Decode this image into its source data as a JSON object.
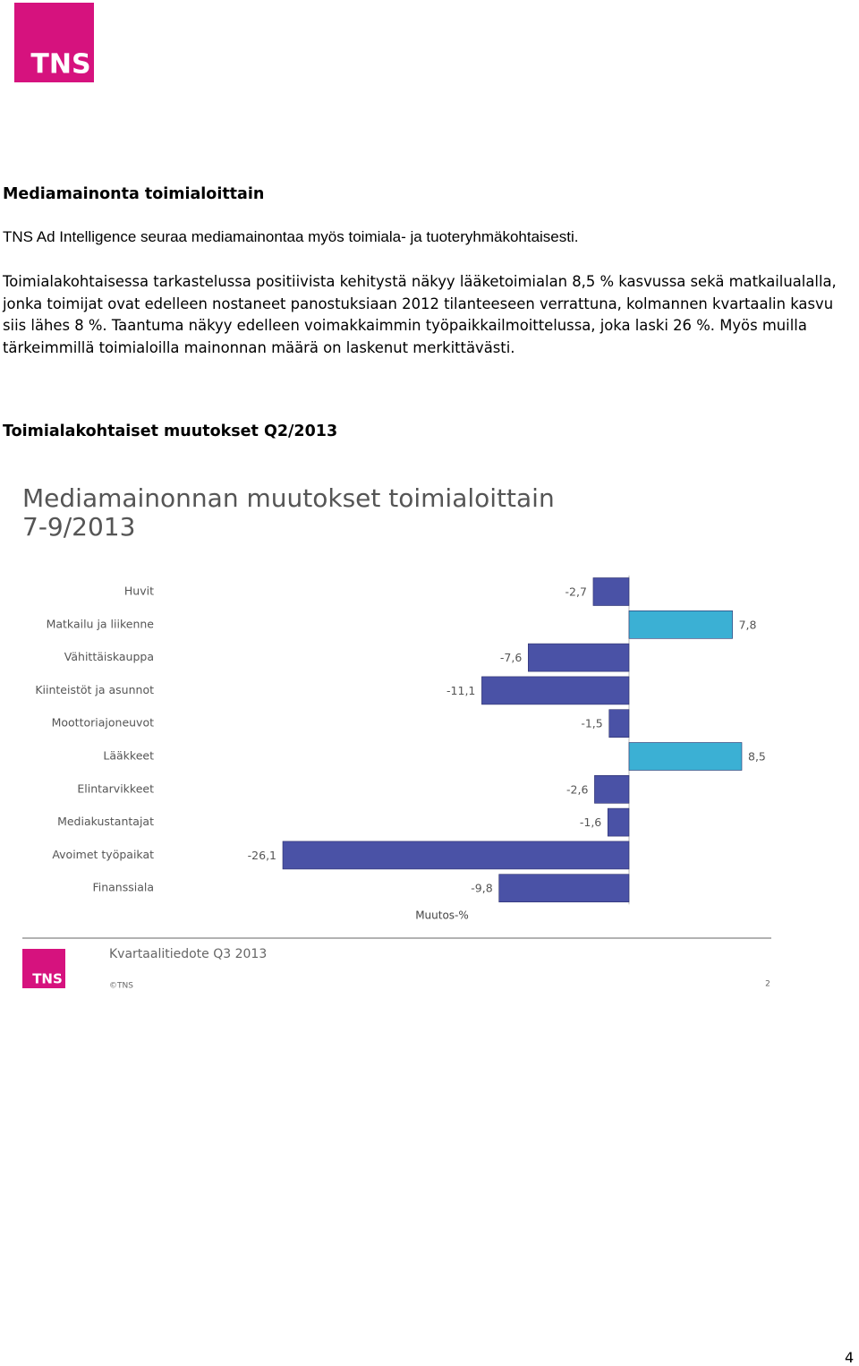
{
  "header": {
    "logo": "TNS"
  },
  "heading": "Mediamainonta toimialoittain",
  "paragraphs": [
    "TNS Ad Intelligence seuraa mediamainontaa myös toimiala- ja tuoteryhmäkohtaisesti.",
    "Toimialakohtaisessa tarkastelussa positiivista kehitystä näkyy lääketoimialan 8,5 % kasvussa sekä matkailualalla, jonka toimijat ovat edelleen nostaneet panostuksiaan 2012 tilanteeseen verrattuna, kolmannen kvartaalin kasvu siis lähes 8 %. Taantuma näkyy edelleen voimakkaimmin työpaikkailmoittelussa, joka laski 26 %. Myös muilla tärkeimmillä toimialoilla mainonnan määrä on laskenut merkittävästi."
  ],
  "subheading": "Toimialakohtaiset muutokset Q2/2013",
  "chart_data": {
    "type": "hbar",
    "title": "Mediamainonnan muutokset toimialoittain",
    "subtitle": "7-9/2013",
    "categories": [
      "Huvit",
      "Matkailu ja liikenne",
      "Vähittäiskauppa",
      "Kiinteistöt ja asunnot",
      "Moottoriajoneuvot",
      "Lääkkeet",
      "Elintarvikkeet",
      "Mediakustantajat",
      "Avoimet työpaikat",
      "Finanssiala"
    ],
    "values": [
      -2.7,
      7.8,
      -7.6,
      -11.1,
      -1.5,
      8.5,
      -2.6,
      -1.6,
      -26.1,
      -9.8
    ],
    "value_labels": [
      "-2,7",
      "7,8",
      "-7,6",
      "-11,1",
      "-1,5",
      "8,5",
      "-2,6",
      "-1,6",
      "-26,1",
      "-9,8"
    ],
    "x_label": "Muutos-%",
    "negative_color": "#4a52a6",
    "positive_color": "#3bb0d4"
  },
  "footer": {
    "logo": "TNS",
    "text": "Kvartaalitiedote Q3 2013",
    "copyright": "©TNS",
    "slide_number": "2"
  },
  "page_number": "4"
}
